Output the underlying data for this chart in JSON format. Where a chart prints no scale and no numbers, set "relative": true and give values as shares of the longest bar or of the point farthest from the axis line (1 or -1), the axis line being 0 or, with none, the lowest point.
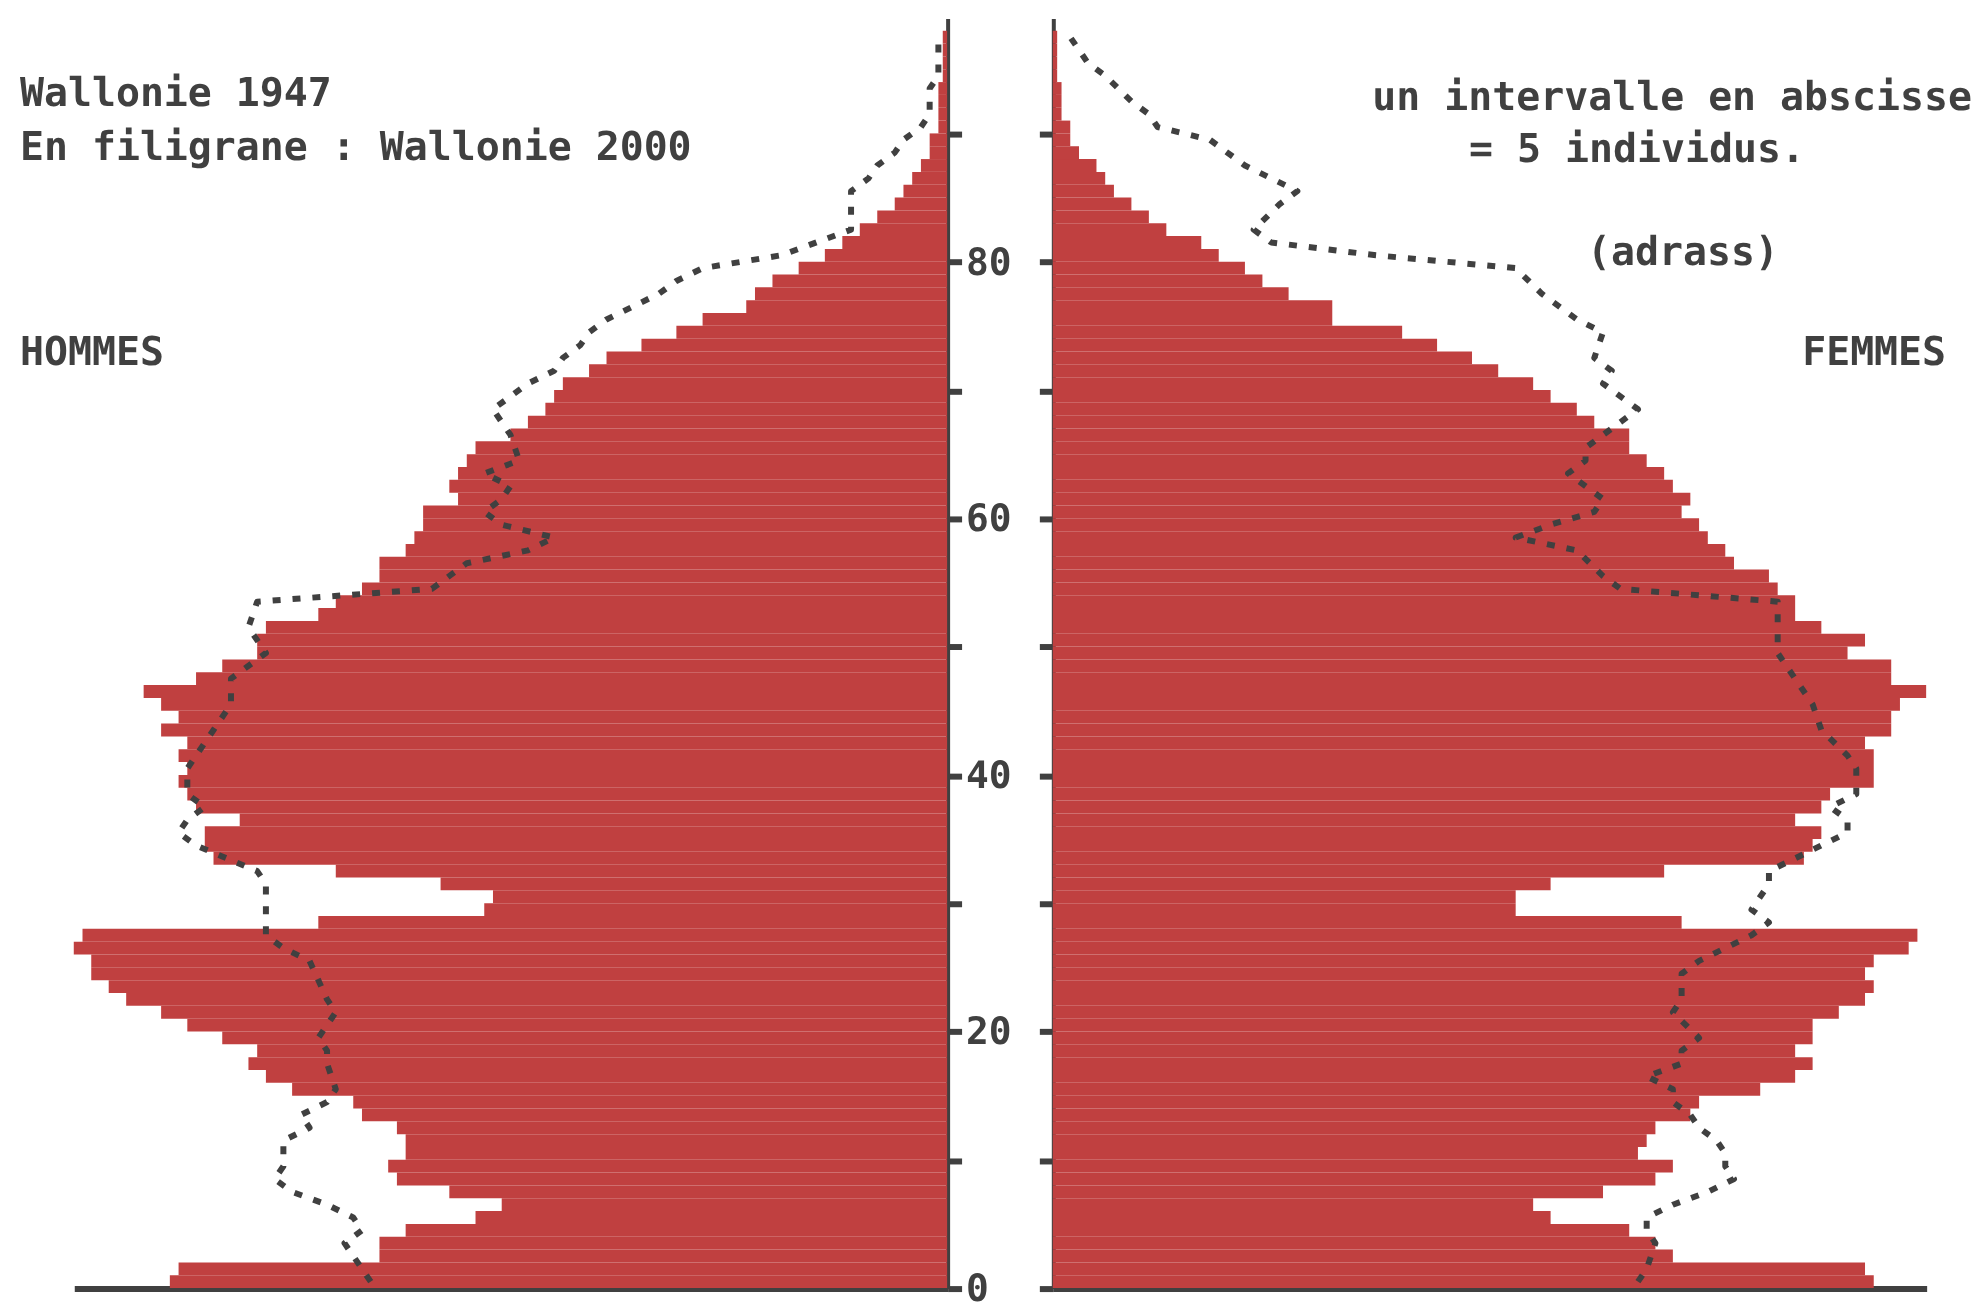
{
  "chart_data": [
    {
      "type": "histogram",
      "orientation": "horizontal",
      "relative": true,
      "tick_labels": "y",
      "annotations": [
        "Wallonie 1947",
        "En filigrane  : Wallonie 2000",
        "HOMMES"
      ],
      "bins": [
        0,
        1,
        2,
        3,
        4,
        5,
        6,
        7,
        8,
        9,
        10,
        11,
        12,
        13,
        14,
        15,
        16,
        17,
        18,
        19,
        20,
        21,
        22,
        23,
        24,
        25,
        26,
        27,
        28,
        29,
        30,
        31,
        32,
        33,
        34,
        35,
        36,
        37,
        38,
        39,
        40,
        41,
        42,
        43,
        44,
        45,
        46,
        47,
        48,
        49,
        50,
        51,
        52,
        53,
        54,
        55,
        56,
        57,
        58,
        59,
        60,
        61,
        62,
        63,
        64,
        65,
        66,
        67,
        68,
        69,
        70,
        71,
        72,
        73,
        74,
        75,
        76,
        77,
        78,
        79,
        80,
        81,
        82,
        83,
        84,
        85,
        86,
        87,
        88,
        89,
        90,
        91,
        92,
        93,
        94,
        95,
        96,
        97,
        98
      ],
      "ylim": [
        0,
        99
      ],
      "yticks": [
        0,
        {
          "value": 10,
          "label": null
        },
        20,
        {
          "value": 30,
          "label": null
        },
        40,
        {
          "value": 50,
          "label": null
        },
        60,
        {
          "value": 70,
          "label": null
        },
        80,
        {
          "value": 90,
          "label": null
        }
      ],
      "series": [
        {
          "color": "#c04040",
          "values": [
            -0.89,
            -0.88,
            -0.65,
            -0.65,
            -0.62,
            -0.54,
            -0.51,
            -0.57,
            -0.63,
            -0.64,
            -0.62,
            -0.62,
            -0.63,
            -0.67,
            -0.68,
            -0.75,
            -0.78,
            -0.8,
            -0.79,
            -0.83,
            -0.87,
            -0.9,
            -0.94,
            -0.96,
            -0.98,
            -0.98,
            -1,
            -0.99,
            -0.72,
            -0.53,
            -0.52,
            -0.58,
            -0.7,
            -0.84,
            -0.85,
            -0.85,
            -0.81,
            -0.86,
            -0.87,
            -0.88,
            -0.87,
            -0.88,
            -0.87,
            -0.9,
            -0.88,
            -0.9,
            -0.92,
            -0.86,
            -0.83,
            -0.79,
            -0.79,
            -0.78,
            -0.72,
            -0.7,
            -0.67,
            -0.65,
            -0.65,
            -0.62,
            -0.61,
            -0.6,
            -0.6,
            -0.56,
            -0.57,
            -0.56,
            -0.55,
            -0.54,
            -0.5,
            -0.48,
            -0.46,
            -0.45,
            -0.44,
            -0.41,
            -0.39,
            -0.35,
            -0.31,
            -0.28,
            -0.23,
            -0.22,
            -0.2,
            -0.17,
            -0.14,
            -0.12,
            -0.1,
            -0.08,
            -0.06,
            -0.05,
            -0.04,
            -0.03,
            -0.02,
            -0.02,
            -0.01,
            -0.01,
            -0.01,
            -0.01,
            -0.005,
            -0.005,
            -0.005,
            -0.005
          ]
        },
        {
          "type": "line",
          "color": "#404040",
          "line_style": "dashed",
          "x": [
            0.5,
            2.5,
            3.5,
            4.5,
            5.5,
            6.5,
            7.5,
            8.5,
            9.5,
            10.5,
            11.5,
            12.5,
            13.5,
            14.5,
            15.5,
            17.5,
            18.5,
            19.5,
            21.5,
            22.5,
            25.5,
            26.5,
            27.5,
            29.5,
            31.5,
            32.5,
            34.5,
            35.5,
            36.5,
            37.5,
            38.5,
            40.5,
            41.5,
            43.5,
            45.5,
            47.5,
            49.5,
            51.5,
            53.5,
            54.5,
            56.5,
            57.5,
            58.5,
            59.5,
            60.5,
            61.5,
            62.5,
            63.5,
            64.5,
            66.5,
            68.5,
            70.5,
            71.5,
            72.5,
            73.5,
            74.5,
            75.5,
            76.5,
            77.5,
            78.5,
            79.5,
            80.5,
            82.5,
            85.5,
            86.5,
            87.5,
            88.5,
            89.5,
            90.5,
            91.5,
            93.5,
            94.5,
            97.5
          ],
          "values": [
            -0.66,
            -0.68,
            -0.69,
            -0.67,
            -0.68,
            -0.71,
            -0.75,
            -0.77,
            -0.76,
            -0.76,
            -0.76,
            -0.73,
            -0.74,
            -0.71,
            -0.7,
            -0.71,
            -0.71,
            -0.72,
            -0.7,
            -0.71,
            -0.73,
            -0.76,
            -0.78,
            -0.78,
            -0.78,
            -0.79,
            -0.86,
            -0.88,
            -0.87,
            -0.85,
            -0.87,
            -0.87,
            -0.86,
            -0.84,
            -0.82,
            -0.82,
            -0.78,
            -0.8,
            -0.79,
            -0.59,
            -0.55,
            -0.48,
            -0.45,
            -0.51,
            -0.53,
            -0.51,
            -0.5,
            -0.53,
            -0.49,
            -0.5,
            -0.52,
            -0.48,
            -0.45,
            -0.44,
            -0.42,
            -0.41,
            -0.39,
            -0.36,
            -0.33,
            -0.31,
            -0.28,
            -0.19,
            -0.11,
            -0.11,
            -0.09,
            -0.08,
            -0.06,
            -0.05,
            -0.03,
            -0.02,
            -0.02,
            -0.01,
            -0.01
          ]
        }
      ]
    },
    {
      "type": "histogram",
      "orientation": "horizontal",
      "relative": true,
      "tick_labels": false,
      "annotations": [
        "un intervalle en abscisse",
        "= 5  individus.",
        "(adrass)",
        "FEMMES"
      ],
      "bins": [
        0,
        1,
        2,
        3,
        4,
        5,
        6,
        7,
        8,
        9,
        10,
        11,
        12,
        13,
        14,
        15,
        16,
        17,
        18,
        19,
        20,
        21,
        22,
        23,
        24,
        25,
        26,
        27,
        28,
        29,
        30,
        31,
        32,
        33,
        34,
        35,
        36,
        37,
        38,
        39,
        40,
        41,
        42,
        43,
        44,
        45,
        46,
        47,
        48,
        49,
        50,
        51,
        52,
        53,
        54,
        55,
        56,
        57,
        58,
        59,
        60,
        61,
        62,
        63,
        64,
        65,
        66,
        67,
        68,
        69,
        70,
        71,
        72,
        73,
        74,
        75,
        76,
        77,
        78,
        79,
        80,
        81,
        82,
        83,
        84,
        85,
        86,
        87,
        88,
        89,
        90,
        91,
        92,
        93,
        94,
        95,
        96,
        97,
        98
      ],
      "ylim": [
        0,
        99
      ],
      "yticks": [
        {
          "value": 0,
          "label": null
        },
        {
          "value": 10,
          "label": null
        },
        {
          "value": 20,
          "label": null
        },
        {
          "value": 30,
          "label": null
        },
        {
          "value": 40,
          "label": null
        },
        {
          "value": 50,
          "label": null
        },
        {
          "value": 60,
          "label": null
        },
        {
          "value": 70,
          "label": null
        },
        {
          "value": 80,
          "label": null
        },
        {
          "value": 90,
          "label": null
        }
      ],
      "series": [
        {
          "color": "#c04040",
          "values": [
            0.94,
            0.93,
            0.71,
            0.69,
            0.66,
            0.57,
            0.55,
            0.63,
            0.69,
            0.71,
            0.67,
            0.68,
            0.69,
            0.73,
            0.74,
            0.81,
            0.85,
            0.87,
            0.85,
            0.87,
            0.87,
            0.9,
            0.93,
            0.94,
            0.93,
            0.94,
            0.98,
            0.99,
            0.72,
            0.53,
            0.53,
            0.57,
            0.7,
            0.86,
            0.87,
            0.88,
            0.85,
            0.88,
            0.89,
            0.94,
            0.94,
            0.94,
            0.93,
            0.96,
            0.96,
            0.97,
            1,
            0.96,
            0.96,
            0.91,
            0.93,
            0.88,
            0.85,
            0.85,
            0.83,
            0.82,
            0.78,
            0.77,
            0.75,
            0.74,
            0.72,
            0.73,
            0.71,
            0.7,
            0.68,
            0.66,
            0.66,
            0.62,
            0.6,
            0.57,
            0.55,
            0.51,
            0.48,
            0.44,
            0.4,
            0.32,
            0.32,
            0.27,
            0.24,
            0.22,
            0.19,
            0.17,
            0.13,
            0.11,
            0.09,
            0.07,
            0.06,
            0.05,
            0.03,
            0.02,
            0.02,
            0.01,
            0.01,
            0.01,
            0.005,
            0.005,
            0.005,
            0.005
          ]
        },
        {
          "type": "line",
          "color": "#404040",
          "line_style": "dashed",
          "x": [
            0.5,
            1.5,
            3.5,
            4.5,
            5.5,
            6.5,
            7.5,
            8.5,
            9.5,
            10.5,
            11.5,
            12.5,
            13.5,
            14.5,
            15.5,
            16.5,
            17.5,
            18.5,
            19.5,
            21.5,
            22.5,
            24.5,
            25.5,
            26.5,
            27.5,
            28.5,
            29.5,
            30.5,
            31.5,
            32.5,
            33.5,
            34.5,
            35.5,
            36.5,
            37.5,
            38.5,
            40.5,
            41.5,
            43.5,
            45.5,
            47.5,
            49.5,
            53.5,
            54.5,
            55.5,
            57.5,
            58.5,
            59.5,
            60.5,
            61.5,
            63.5,
            64.5,
            65.5,
            67.5,
            68.5,
            70.5,
            71.5,
            72.5,
            74.5,
            75.5,
            76.5,
            77.5,
            79.5,
            80.5,
            81.5,
            82.5,
            84.5,
            85.5,
            86.5,
            87.5,
            89.5,
            90.5,
            91.5,
            92.5,
            94.5,
            95.5,
            96.5,
            97.5
          ],
          "values": [
            0.67,
            0.68,
            0.69,
            0.68,
            0.68,
            0.71,
            0.75,
            0.78,
            0.77,
            0.77,
            0.76,
            0.74,
            0.73,
            0.71,
            0.71,
            0.68,
            0.72,
            0.72,
            0.74,
            0.71,
            0.72,
            0.72,
            0.74,
            0.77,
            0.8,
            0.82,
            0.8,
            0.81,
            0.82,
            0.82,
            0.85,
            0.88,
            0.91,
            0.91,
            0.89,
            0.92,
            0.92,
            0.91,
            0.88,
            0.87,
            0.85,
            0.83,
            0.83,
            0.65,
            0.63,
            0.6,
            0.53,
            0.57,
            0.62,
            0.63,
            0.59,
            0.61,
            0.61,
            0.65,
            0.67,
            0.63,
            0.64,
            0.62,
            0.63,
            0.6,
            0.58,
            0.56,
            0.53,
            0.37,
            0.25,
            0.23,
            0.26,
            0.28,
            0.25,
            0.22,
            0.18,
            0.12,
            0.11,
            0.09,
            0.06,
            0.04,
            0.03,
            0.02
          ]
        }
      ]
    }
  ]
}
